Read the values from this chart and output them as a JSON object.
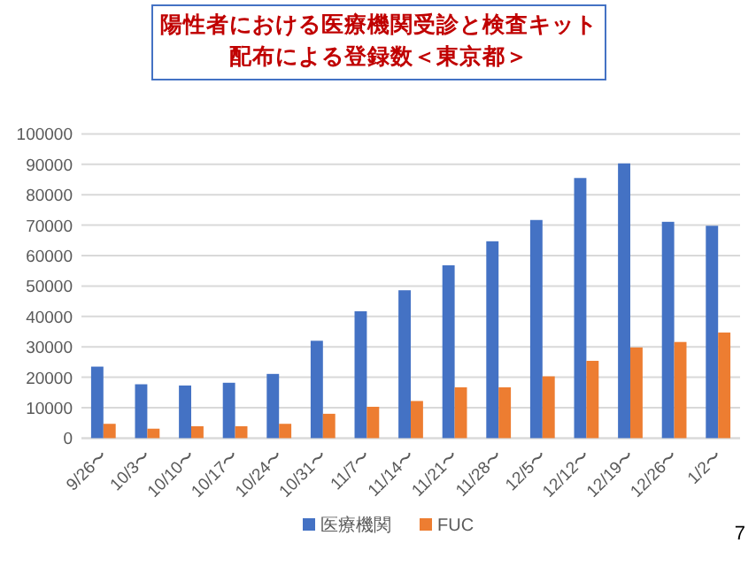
{
  "chart_data": {
    "type": "bar",
    "title": "陽性者における医療機関受診と検査キット配布による登録数＜東京都＞",
    "categories": [
      "9/26〜",
      "10/3〜",
      "10/10〜",
      "10/17〜",
      "10/24〜",
      "10/31〜",
      "11/7〜",
      "11/14〜",
      "11/21〜",
      "11/28〜",
      "12/5〜",
      "12/12〜",
      "12/19〜",
      "12/26〜",
      "1/2〜"
    ],
    "series": [
      {
        "name": "医療機関",
        "color": "#4472c4",
        "values": [
          23500,
          17700,
          17300,
          18200,
          21100,
          32000,
          41700,
          48600,
          56800,
          64700,
          71700,
          85500,
          90300,
          71100,
          69800
        ]
      },
      {
        "name": "FUC",
        "color": "#ed7d31",
        "values": [
          4700,
          3100,
          3900,
          3900,
          4700,
          8000,
          10300,
          12200,
          16700,
          16700,
          20300,
          25400,
          29800,
          31600,
          34700
        ]
      }
    ],
    "ylim": [
      0,
      100000
    ],
    "yticks": [
      0,
      10000,
      20000,
      30000,
      40000,
      50000,
      60000,
      70000,
      80000,
      90000,
      100000
    ],
    "grid": "y",
    "legend": "bottom",
    "annotations": [
      "7"
    ]
  }
}
